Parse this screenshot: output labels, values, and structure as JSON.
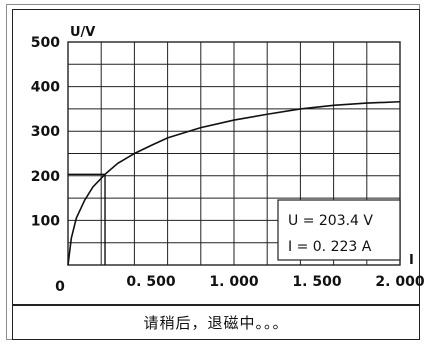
{
  "chart_data": {
    "type": "line",
    "title": "",
    "ylabel": "U/V",
    "xlabel": "I",
    "xlim": [
      0,
      2.0
    ],
    "ylim": [
      0,
      500
    ],
    "x_ticks": [
      "0",
      "0. 500",
      "1. 000",
      "1. 500",
      "2. 000"
    ],
    "y_ticks": [
      "100",
      "200",
      "300",
      "400",
      "500"
    ],
    "grid": true,
    "series": [
      {
        "x": [
          0,
          0.02,
          0.05,
          0.1,
          0.15,
          0.223,
          0.3,
          0.4,
          0.5,
          0.6,
          0.8,
          1.0,
          1.2,
          1.4,
          1.6,
          1.8,
          2.0
        ],
        "y": [
          0,
          60,
          105,
          145,
          175,
          203.4,
          228,
          250,
          268,
          285,
          308,
          325,
          338,
          350,
          358,
          363,
          366
        ]
      }
    ],
    "operating_point": {
      "x": 0.223,
      "y": 203.4
    }
  },
  "readout": {
    "u_text": "U = 203.4  V",
    "i_text": "I = 0. 223   A"
  },
  "status": {
    "message": "请稍后，退磁中。。。"
  }
}
